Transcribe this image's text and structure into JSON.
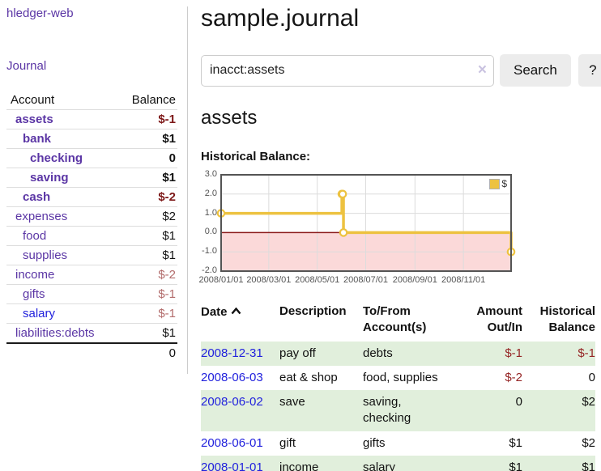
{
  "app": {
    "brand": "hledger-web"
  },
  "colors": {
    "link_purple": "#5b36a5",
    "link_blue": "#2222dd",
    "negative_strong": "#7d1818",
    "negative_light": "#b26b6b",
    "negative_table": "#952525",
    "row_stripe_green": "#e1efdc",
    "chart_line_gold": "#edc240",
    "chart_negative_bg": "#fbd9d9",
    "chart_zero_line": "#8b1a1a",
    "button_bg": "#ececec"
  },
  "sidebar": {
    "journal_link": "Journal",
    "table": {
      "headers": {
        "account": "Account",
        "balance": "Balance"
      },
      "rows": [
        {
          "name": "assets",
          "balance": "$-1"
        },
        {
          "name": "bank",
          "balance": "$1"
        },
        {
          "name": "checking",
          "balance": "0"
        },
        {
          "name": "saving",
          "balance": "$1"
        },
        {
          "name": "cash",
          "balance": "$-2"
        },
        {
          "name": "expenses",
          "balance": "$2"
        },
        {
          "name": "food",
          "balance": "$1"
        },
        {
          "name": "supplies",
          "balance": "$1"
        },
        {
          "name": "income",
          "balance": "$-2"
        },
        {
          "name": "gifts",
          "balance": "$-1"
        },
        {
          "name": "salary",
          "balance": "$-1"
        },
        {
          "name": "liabilities:debts",
          "balance": "$1"
        }
      ],
      "total": "0"
    }
  },
  "main": {
    "title": "sample.journal",
    "search": {
      "value": "inacct:assets",
      "clear_icon": "×",
      "button_label": "Search",
      "help_label": "?"
    },
    "account_heading": "assets",
    "chart_label": "Historical Balance:"
  },
  "chart_data": {
    "type": "line",
    "title": "Historical Balance:",
    "xlabel": "",
    "ylabel": "",
    "step": true,
    "legend_position": "top-right",
    "grid": true,
    "dates": [
      "2008-01-01",
      "2008-06-01",
      "2008-06-02",
      "2008-06-03",
      "2008-12-31"
    ],
    "values": [
      1,
      2,
      2,
      0,
      -1
    ],
    "series": [
      {
        "name": "$",
        "color": "#edc240",
        "points": [
          [
            0,
            1
          ],
          [
            152,
            2
          ],
          [
            153,
            2
          ],
          [
            154,
            0
          ],
          [
            365,
            -1
          ]
        ]
      }
    ],
    "xmax": 365,
    "ymin": -2,
    "ymax": 3,
    "yticks": [
      {
        "v": 3,
        "label": "3.0"
      },
      {
        "v": 2,
        "label": "2.0"
      },
      {
        "v": 1,
        "label": "1.0"
      },
      {
        "v": 0,
        "label": "0.0"
      },
      {
        "v": -1,
        "label": "-1.0"
      },
      {
        "v": -2,
        "label": "-2.0"
      }
    ],
    "xticks": [
      {
        "pos": 0,
        "label": "2008/01/01"
      },
      {
        "pos": 60,
        "label": "2008/03/01"
      },
      {
        "pos": 121,
        "label": "2008/05/01"
      },
      {
        "pos": 182,
        "label": "2008/07/01"
      },
      {
        "pos": 244,
        "label": "2008/09/01"
      },
      {
        "pos": 305,
        "label": "2008/11/01"
      }
    ],
    "negative_region_color": "#fbd9d9",
    "zero_line_color": "#8b1a1a",
    "grid_color": "#dcdcdc",
    "border_color": "#545454"
  },
  "register": {
    "headers": {
      "date": "Date",
      "description": "Description",
      "accounts": "To/From Account(s)",
      "amount": "Amount Out/In",
      "balance": "Historical Balance"
    },
    "rows": [
      {
        "date": "2008-12-31",
        "description": "pay off",
        "accounts": "debts",
        "amount": "$-1",
        "balance": "$-1"
      },
      {
        "date": "2008-06-03",
        "description": "eat & shop",
        "accounts": "food, supplies",
        "amount": "$-2",
        "balance": "0"
      },
      {
        "date": "2008-06-02",
        "description": "save",
        "accounts": "saving, checking",
        "amount": "0",
        "balance": "$2"
      },
      {
        "date": "2008-06-01",
        "description": "gift",
        "accounts": "gifts",
        "amount": "$1",
        "balance": "$2"
      },
      {
        "date": "2008-01-01",
        "description": "income",
        "accounts": "salary",
        "amount": "$1",
        "balance": "$1"
      }
    ]
  }
}
